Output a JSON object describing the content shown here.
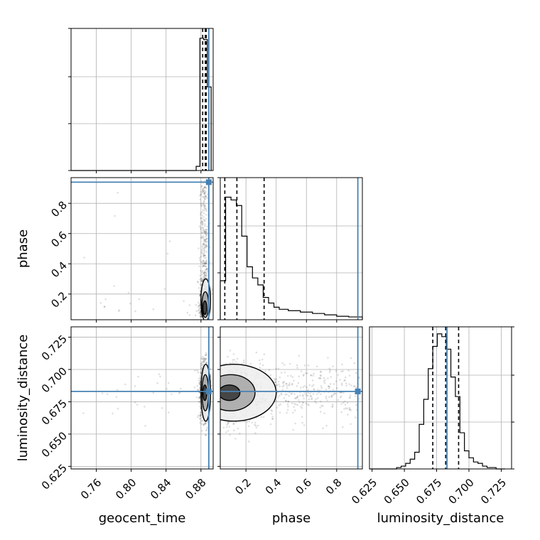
{
  "chart_data": {
    "type": "corner",
    "parameters": [
      "geocent_time",
      "phase",
      "luminosity_distance"
    ],
    "truths": {
      "geocent_time": 0.889,
      "phase": 0.94,
      "luminosity_distance": 0.683
    },
    "truth_color": "#4682b4",
    "quantiles": {
      "geocent_time": [
        0.882,
        0.885,
        0.886
      ],
      "phase": [
        0.06,
        0.14,
        0.32
      ],
      "luminosity_distance": [
        0.672,
        0.682,
        0.692
      ]
    },
    "axis_ranges": {
      "geocent_time": [
        0.731,
        0.894
      ],
      "phase": [
        0.03,
        0.97
      ],
      "luminosity_distance": [
        0.623,
        0.733
      ]
    },
    "ticks": {
      "geocent_time": [
        "0.76",
        "0.80",
        "0.84",
        "0.88"
      ],
      "phase": [
        "0.2",
        "0.4",
        "0.6",
        "0.8"
      ],
      "luminosity_distance": [
        "0.625",
        "0.650",
        "0.675",
        "0.700",
        "0.725"
      ]
    },
    "grid": true,
    "histograms": {
      "geocent_time": {
        "bins": [
          0.8745,
          0.8788,
          0.8831,
          0.8874,
          0.8917
        ],
        "heights": [
          0.03,
          0.95,
          0.94,
          0.6
        ]
      },
      "phase": {
        "bins": [
          0.03,
          0.0655,
          0.101,
          0.1365,
          0.172,
          0.2075,
          0.243,
          0.2785,
          0.314,
          0.3495,
          0.385,
          0.42,
          0.48,
          0.56,
          0.64,
          0.72,
          0.8,
          0.88,
          0.97
        ],
        "heights": [
          0.28,
          0.88,
          0.86,
          0.82,
          0.6,
          0.38,
          0.3,
          0.25,
          0.16,
          0.12,
          0.09,
          0.075,
          0.065,
          0.055,
          0.045,
          0.035,
          0.025,
          0.02
        ]
      },
      "luminosity_distance": {
        "bins": [
          0.63,
          0.6335,
          0.637,
          0.6405,
          0.644,
          0.6475,
          0.651,
          0.6545,
          0.658,
          0.6615,
          0.665,
          0.6685,
          0.672,
          0.6755,
          0.679,
          0.6825,
          0.686,
          0.6895,
          0.693,
          0.6965,
          0.7,
          0.7035,
          0.707,
          0.7105,
          0.714,
          0.7175,
          0.721,
          0.7245,
          0.728
        ],
        "heights": [
          0.0,
          0.0,
          0.0,
          0.0,
          0.01,
          0.02,
          0.04,
          0.07,
          0.12,
          0.32,
          0.5,
          0.72,
          0.88,
          0.97,
          0.95,
          0.86,
          0.66,
          0.52,
          0.26,
          0.13,
          0.08,
          0.05,
          0.04,
          0.02,
          0.01,
          0.01,
          0.0,
          0.0
        ]
      }
    }
  }
}
